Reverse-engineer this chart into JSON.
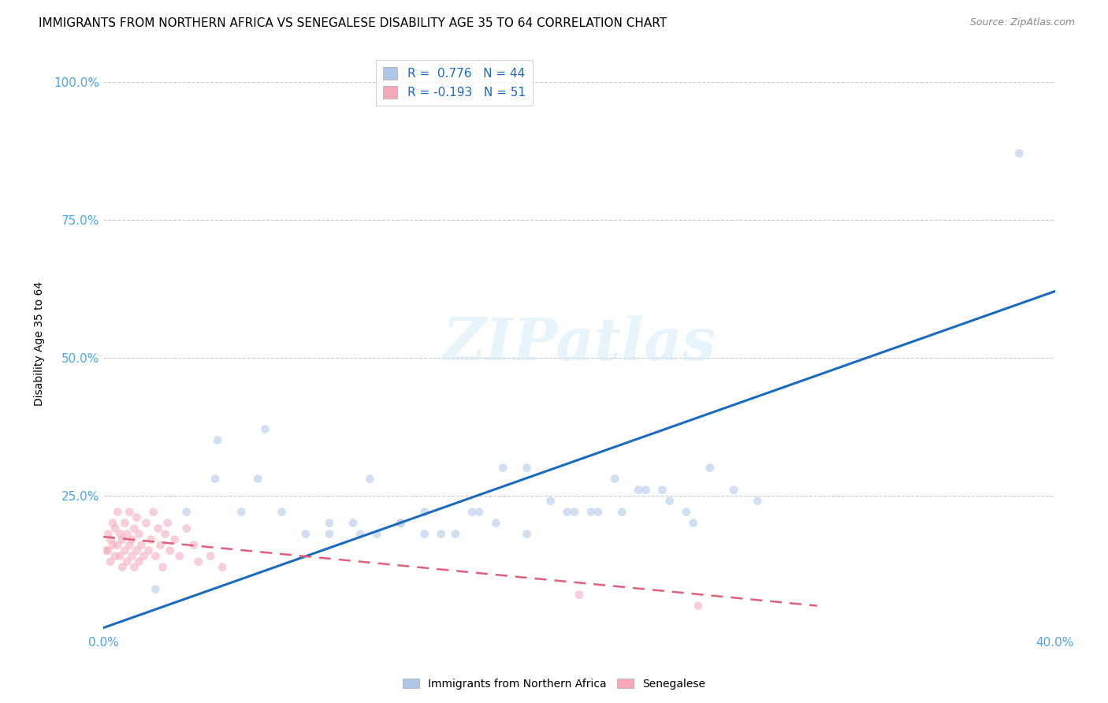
{
  "title": "IMMIGRANTS FROM NORTHERN AFRICA VS SENEGALESE DISABILITY AGE 35 TO 64 CORRELATION CHART",
  "source": "Source: ZipAtlas.com",
  "ylabel": "Disability Age 35 to 64",
  "watermark": "ZIPatlas",
  "xlim": [
    0.0,
    0.4
  ],
  "ylim": [
    0.0,
    1.05
  ],
  "ytick_positions": [
    0.25,
    0.5,
    0.75,
    1.0
  ],
  "ytick_labels": [
    "25.0%",
    "50.0%",
    "75.0%",
    "100.0%"
  ],
  "xtick_positions": [
    0.0,
    0.05,
    0.1,
    0.15,
    0.2,
    0.25,
    0.3,
    0.35,
    0.4
  ],
  "xtick_labels": [
    "0.0%",
    "",
    "",
    "",
    "",
    "",
    "",
    "",
    "40.0%"
  ],
  "legend_r1": "0.776",
  "legend_n1": "44",
  "legend_r2": "-0.193",
  "legend_n2": "51",
  "blue_scatter_x": [
    0.022,
    0.035,
    0.047,
    0.058,
    0.065,
    0.075,
    0.085,
    0.095,
    0.105,
    0.112,
    0.125,
    0.135,
    0.142,
    0.155,
    0.168,
    0.178,
    0.198,
    0.208,
    0.218,
    0.228,
    0.238,
    0.248,
    0.095,
    0.108,
    0.115,
    0.125,
    0.135,
    0.148,
    0.158,
    0.165,
    0.178,
    0.188,
    0.195,
    0.205,
    0.215,
    0.225,
    0.235,
    0.245,
    0.255,
    0.265,
    0.275,
    0.048,
    0.068,
    0.385
  ],
  "blue_scatter_y": [
    0.08,
    0.22,
    0.28,
    0.22,
    0.28,
    0.22,
    0.18,
    0.18,
    0.2,
    0.28,
    0.2,
    0.22,
    0.18,
    0.22,
    0.3,
    0.3,
    0.22,
    0.22,
    0.22,
    0.26,
    0.24,
    0.2,
    0.2,
    0.18,
    0.18,
    0.2,
    0.18,
    0.18,
    0.22,
    0.2,
    0.18,
    0.24,
    0.22,
    0.22,
    0.28,
    0.26,
    0.26,
    0.22,
    0.3,
    0.26,
    0.24,
    0.35,
    0.37,
    0.87
  ],
  "pink_scatter_x": [
    0.001,
    0.002,
    0.002,
    0.003,
    0.003,
    0.004,
    0.004,
    0.005,
    0.005,
    0.006,
    0.006,
    0.007,
    0.007,
    0.008,
    0.008,
    0.009,
    0.009,
    0.01,
    0.01,
    0.011,
    0.011,
    0.012,
    0.012,
    0.013,
    0.013,
    0.014,
    0.014,
    0.015,
    0.015,
    0.016,
    0.017,
    0.018,
    0.019,
    0.02,
    0.021,
    0.022,
    0.023,
    0.024,
    0.025,
    0.026,
    0.027,
    0.028,
    0.03,
    0.032,
    0.035,
    0.038,
    0.04,
    0.045,
    0.05,
    0.2,
    0.25
  ],
  "pink_scatter_y": [
    0.15,
    0.15,
    0.18,
    0.13,
    0.17,
    0.16,
    0.2,
    0.14,
    0.19,
    0.16,
    0.22,
    0.14,
    0.18,
    0.12,
    0.17,
    0.15,
    0.2,
    0.13,
    0.18,
    0.16,
    0.22,
    0.14,
    0.17,
    0.12,
    0.19,
    0.15,
    0.21,
    0.13,
    0.18,
    0.16,
    0.14,
    0.2,
    0.15,
    0.17,
    0.22,
    0.14,
    0.19,
    0.16,
    0.12,
    0.18,
    0.2,
    0.15,
    0.17,
    0.14,
    0.19,
    0.16,
    0.13,
    0.14,
    0.12,
    0.07,
    0.05
  ],
  "blue_line_x": [
    0.0,
    0.4
  ],
  "blue_line_y": [
    0.01,
    0.62
  ],
  "pink_line_x": [
    0.0,
    0.3
  ],
  "pink_line_y": [
    0.175,
    0.05
  ],
  "scatter_size": 60,
  "scatter_alpha": 0.55,
  "blue_color": "#aec6e8",
  "blue_line_color": "#1a6bbf",
  "pink_color": "#f4a8b8",
  "pink_line_color": "#e0607a",
  "background_color": "#ffffff",
  "grid_color": "#cccccc",
  "title_fontsize": 11,
  "axis_label_fontsize": 10,
  "tick_color": "#4da6e8"
}
